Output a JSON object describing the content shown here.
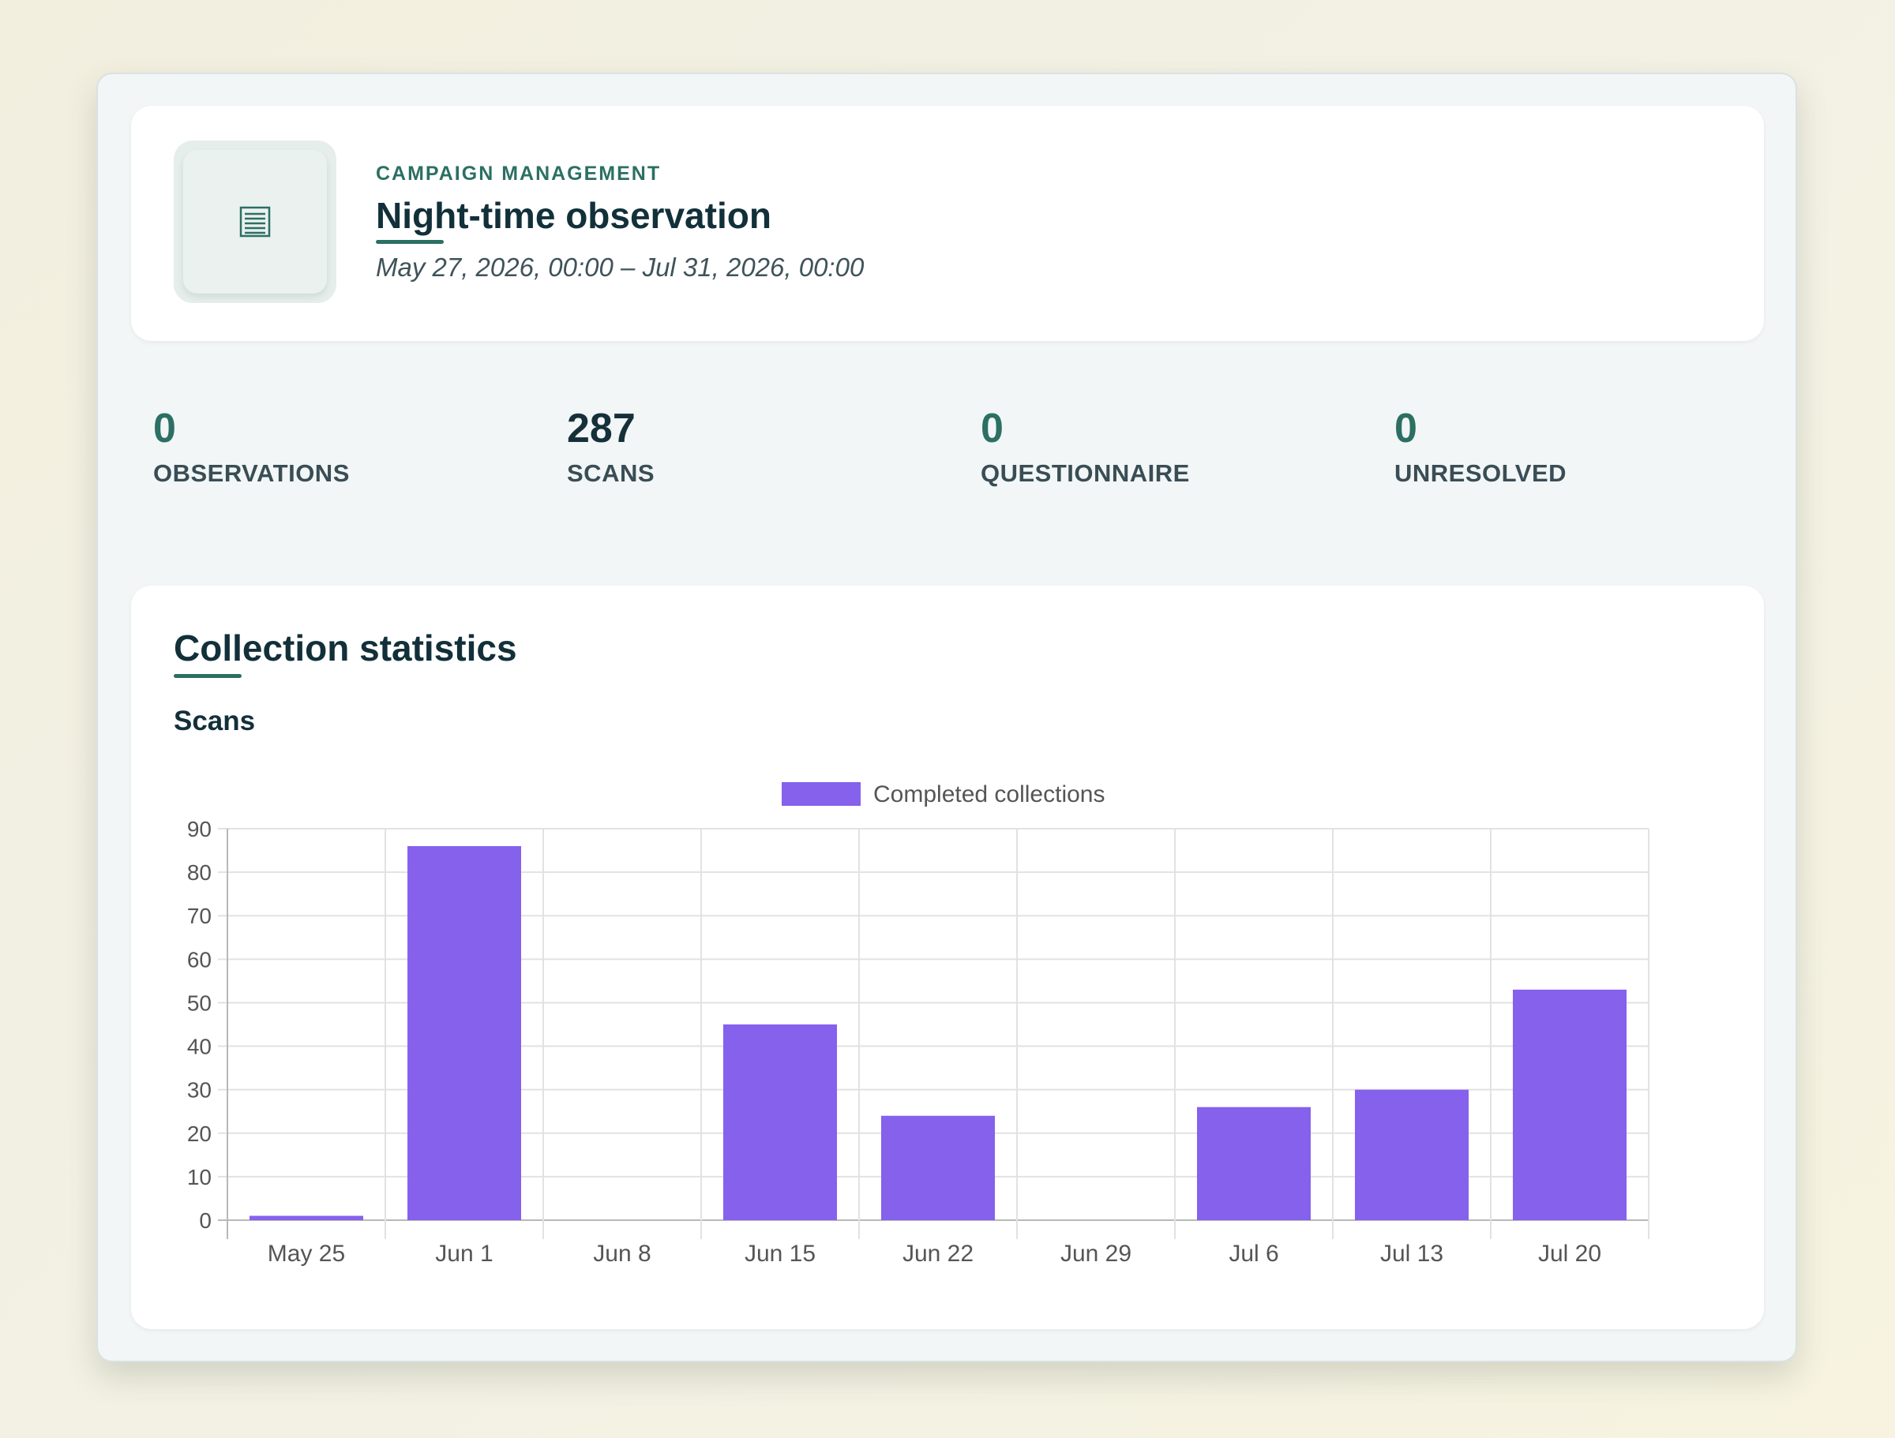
{
  "header": {
    "icon": "document-icon",
    "eyebrow": "CAMPAIGN MANAGEMENT",
    "title": "Night-time observation",
    "date_range": "May 27, 2026, 00:00 – Jul 31, 2026, 00:00"
  },
  "stats": [
    {
      "value": "0",
      "label": "OBSERVATIONS"
    },
    {
      "value": "287",
      "label": "SCANS"
    },
    {
      "value": "0",
      "label": "QUESTIONNAIRE"
    },
    {
      "value": "0",
      "label": "UNRESOLVED"
    }
  ],
  "colors": {
    "accent": "#2c6f63",
    "bar": "#8561ec",
    "heading": "#12303a"
  },
  "collection": {
    "title": "Collection statistics",
    "subtitle": "Scans"
  },
  "chart_data": {
    "type": "bar",
    "categories": [
      "May 25",
      "Jun 1",
      "Jun 8",
      "Jun 15",
      "Jun 22",
      "Jun 29",
      "Jul 6",
      "Jul 13",
      "Jul 20"
    ],
    "series": [
      {
        "name": "Completed collections",
        "values": [
          1,
          86,
          0,
          45,
          24,
          0,
          26,
          30,
          53
        ],
        "color": "#8561ec"
      }
    ],
    "ylim": [
      0,
      90
    ],
    "yticks": [
      0,
      10,
      20,
      30,
      40,
      50,
      60,
      70,
      80,
      90
    ],
    "grid": true,
    "legend": "top-center"
  }
}
